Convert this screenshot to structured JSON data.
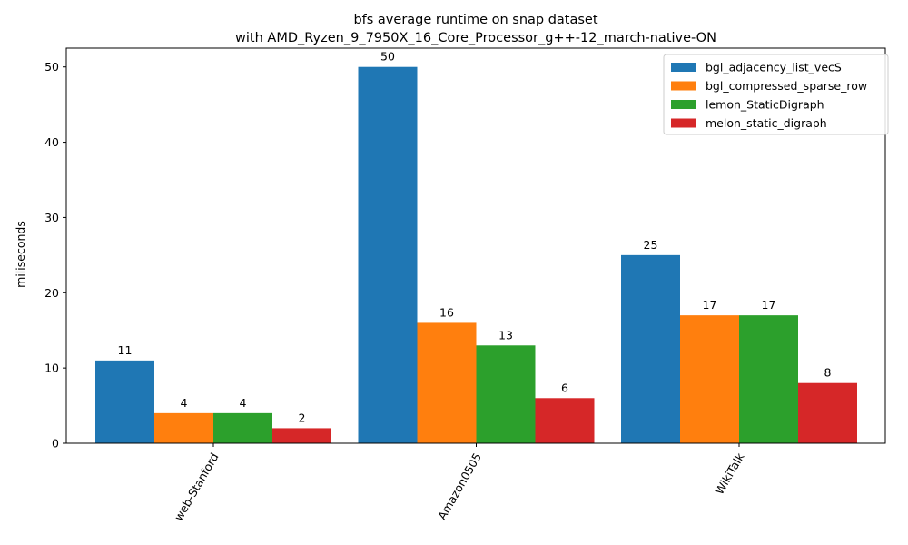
{
  "chart_data": {
    "type": "bar",
    "title_line1": "bfs average runtime on snap dataset",
    "title_line2": "with AMD_Ryzen_9_7950X_16_Core_Processor_g++-12_march-native-ON",
    "xlabel": "",
    "ylabel": "miliseconds",
    "ylim": [
      0,
      52.5
    ],
    "yticks": [
      "0",
      "10",
      "20",
      "30",
      "40",
      "50"
    ],
    "categories": [
      "web-Stanford",
      "Amazon0505",
      "WikiTalk"
    ],
    "legend_position": "top-right",
    "grid": false,
    "series": [
      {
        "name": "bgl_adjacency_list_vecS",
        "color": "#1f77b4",
        "values": [
          11,
          50,
          25
        ],
        "labels": [
          "11",
          "50",
          "25"
        ]
      },
      {
        "name": "bgl_compressed_sparse_row",
        "color": "#ff7f0e",
        "values": [
          4,
          16,
          17
        ],
        "labels": [
          "4",
          "16",
          "17"
        ]
      },
      {
        "name": "lemon_StaticDigraph",
        "color": "#2ca02c",
        "values": [
          4,
          13,
          17
        ],
        "labels": [
          "4",
          "13",
          "17"
        ]
      },
      {
        "name": "melon_static_digraph",
        "color": "#d62728",
        "values": [
          2,
          6,
          8
        ],
        "labels": [
          "2",
          "6",
          "8"
        ]
      }
    ]
  }
}
